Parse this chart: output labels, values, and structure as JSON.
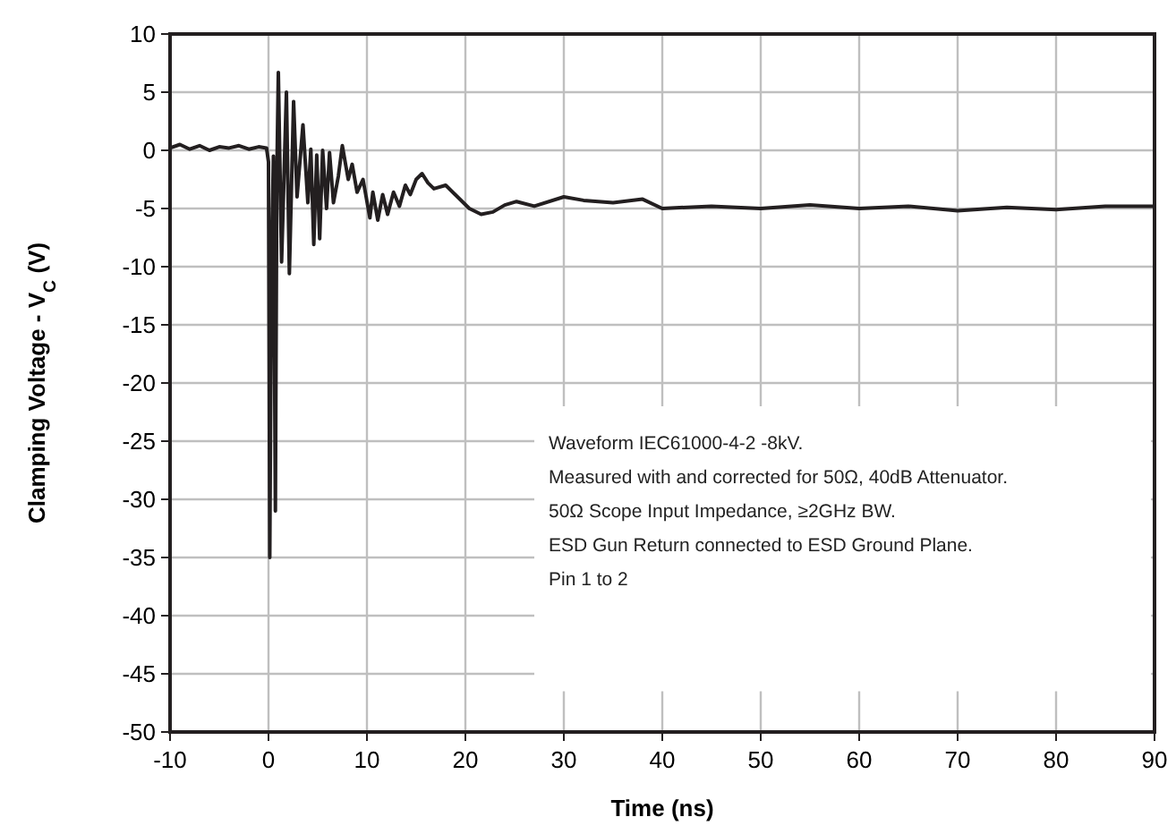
{
  "chart_data": {
    "type": "line",
    "xlabel": "Time (ns)",
    "ylabel": "Clamping Voltage  - V$_{C}$ (V)",
    "xlim": [
      -10,
      90
    ],
    "ylim": [
      -50,
      10
    ],
    "xticks": [
      -10,
      0,
      10,
      20,
      30,
      40,
      50,
      60,
      70,
      80,
      90
    ],
    "yticks": [
      -50,
      -45,
      -40,
      -35,
      -30,
      -25,
      -20,
      -15,
      -10,
      -5,
      0,
      5,
      10
    ],
    "grid": true,
    "annotations": [
      "Waveform IEC61000-4-2 -8kV.",
      "Measured with and corrected for 50Ω, 40dB Attenuator.",
      "50Ω Scope Input Impedance, ≥2GHz BW.",
      "ESD Gun Return connected to ESD Ground Plane.",
      "Pin 1 to 2"
    ],
    "series": [
      {
        "color": "#231f20",
        "x": [
          -10,
          -9,
          -8,
          -7,
          -6,
          -5,
          -4,
          -3,
          -2,
          -1,
          -0.2,
          0,
          0.13,
          0.3,
          0.5,
          0.7,
          0.85,
          1.0,
          1.33,
          1.82,
          2.12,
          2.55,
          2.9,
          3.5,
          4.0,
          4.3,
          4.6,
          4.9,
          5.2,
          5.5,
          5.9,
          6.2,
          6.6,
          7.1,
          7.5,
          8.1,
          8.5,
          9.0,
          9.6,
          10.3,
          10.6,
          11.1,
          11.6,
          12.1,
          12.7,
          13.3,
          13.9,
          14.4,
          15.0,
          15.6,
          16.2,
          16.8,
          18.0,
          19.2,
          20.4,
          21.6,
          22.8,
          24.0,
          25.2,
          27,
          30,
          32,
          35,
          38,
          40,
          45,
          50,
          55,
          60,
          65,
          70,
          75,
          80,
          85,
          90
        ],
        "values": [
          0.2,
          0.5,
          0.1,
          0.4,
          0,
          0.3,
          0.2,
          0.4,
          0.1,
          0.3,
          0.2,
          -1,
          -35,
          -10,
          -0.5,
          -31,
          -2,
          6.7,
          -9.6,
          5.0,
          -10.6,
          4.2,
          -4.0,
          2.2,
          -4.5,
          0.1,
          -8.1,
          -0.4,
          -7.6,
          0,
          -5,
          -0.2,
          -4.5,
          -2.2,
          0.4,
          -2.5,
          -1.2,
          -3.6,
          -2.5,
          -5.8,
          -3.6,
          -6,
          -3.8,
          -5.5,
          -3.6,
          -4.8,
          -3,
          -3.8,
          -2.5,
          -2,
          -2.8,
          -3.3,
          -3,
          -4,
          -5,
          -5.5,
          -5.3,
          -4.7,
          -4.4,
          -4.8,
          -4.0,
          -4.3,
          -4.5,
          -4.2,
          -5.0,
          -4.8,
          -5.0,
          -4.7,
          -5.0,
          -4.8,
          -5.2,
          -4.9,
          -5.1,
          -4.8,
          -4.8
        ]
      }
    ]
  }
}
